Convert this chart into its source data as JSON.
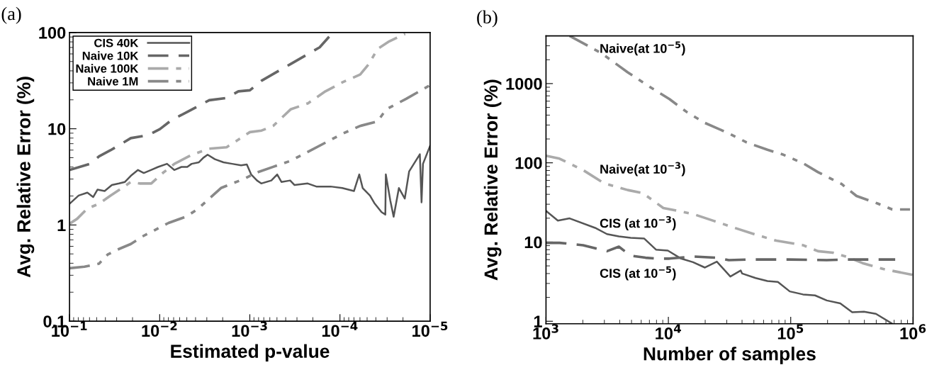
{
  "chart_data": [
    {
      "type": "line",
      "title": "(a)",
      "xlabel": "Estimated p-value",
      "ylabel": "Avg. Relative Error (%)",
      "log": "xy",
      "xlim": [
        0.1,
        1e-05
      ],
      "xticks": [
        {
          "value": 0.1,
          "label": "10$^{−1}$"
        },
        {
          "value": 0.01,
          "label": "10$^{−2}$"
        },
        {
          "value": 0.001,
          "label": "10$^{−3}$"
        },
        {
          "value": 0.0001,
          "label": "10$^{−4}$"
        },
        {
          "value": 1e-05,
          "label": "10$^{−5}$"
        }
      ],
      "ylim": [
        0.1,
        100
      ],
      "yticks": [
        0.1,
        1,
        10,
        100
      ],
      "grid": false,
      "legend": "top left",
      "series": [
        {
          "name": "CIS 40K",
          "color": "#555555",
          "line_style": "solid",
          "x": [
            0.1,
            0.0793,
            0.0634,
            0.0547,
            0.049,
            0.0408,
            0.0339,
            0.0282,
            0.0243,
            0.0209,
            0.0174,
            0.015,
            0.0125,
            0.0104,
            0.00829,
            0.00689,
            0.00573,
            0.00494,
            0.00442,
            0.00367,
            0.00328,
            0.00294,
            0.00244,
            0.00196,
            0.00157,
            0.00125,
            0.00108,
            0.000967,
            0.000833,
            0.000747,
            0.000577,
            0.000497,
            0.000446,
            0.000357,
            0.000319,
            0.000228,
            0.000183,
            0.000127,
            9.44e-05,
            7e-05,
            6.11e-05,
            5.6e-05,
            4.65e-05,
            4.16e-05,
            3.46e-05,
            3.14e-05,
            3.1e-05,
            2.77e-05,
            2.54e-05,
            2.22e-05,
            1.91e-05,
            1.71e-05,
            1.3e-05,
            1.245e-05,
            1.2e-05,
            1e-05
          ],
          "values": [
            1.66,
            2.02,
            2.17,
            1.95,
            2.33,
            2.25,
            2.6,
            2.7,
            2.8,
            3.24,
            3.73,
            3.47,
            3.73,
            4.01,
            4.32,
            3.73,
            4.01,
            4.01,
            4.32,
            4.48,
            4.99,
            5.37,
            4.82,
            4.48,
            4.32,
            4.16,
            4.26,
            3.35,
            2.9,
            2.7,
            2.9,
            3.35,
            2.8,
            2.9,
            2.6,
            2.7,
            2.51,
            2.51,
            2.42,
            2.25,
            3.35,
            2.42,
            2.02,
            1.69,
            1.36,
            1.28,
            3.35,
            1.81,
            1.22,
            2.42,
            1.88,
            3.6,
            5.43,
            1.72,
            4.32,
            6.67
          ]
        },
        {
          "name": "Naive 10K",
          "color": "#666666",
          "line_style": "dashed",
          "x": [
            0.1,
            0.0589,
            0.0471,
            0.0351,
            0.0209,
            0.0134,
            0.00994,
            0.00739,
            0.00473,
            0.00327,
            0.00282,
            0.00181,
            0.00134,
            0.000998,
            0.000741,
            0.000353,
            0.000168,
            0.00012
          ],
          "values": [
            3.73,
            4.32,
            5.17,
            5.98,
            7.99,
            8.59,
            9.93,
            12.3,
            15.3,
            18.4,
            19.8,
            20.9,
            24.5,
            25.1,
            31.6,
            47.1,
            70.2,
            100
          ]
        },
        {
          "name": "Naive 100K",
          "color": "#aaaaaa",
          "line_style": "dashdot",
          "x": [
            0.1,
            0.0822,
            0.0634,
            0.0471,
            0.0351,
            0.0261,
            0.0209,
            0.0167,
            0.0124,
            0.00923,
            0.00686,
            0.0044,
            0.00282,
            0.00181,
            0.00134,
            0.000998,
            0.000741,
            0.000551,
            0.000353,
            0.000226,
            0.000145,
            9.31e-05,
            5.97e-05,
            4.78e-05,
            3.83e-05,
            2.84e-05,
            1.89e-05
          ],
          "values": [
            1.03,
            1.16,
            1.48,
            1.66,
            2.02,
            2.42,
            2.8,
            2.7,
            2.7,
            3.47,
            4.32,
            5.37,
            6.2,
            6.43,
            7.7,
            9.23,
            9.58,
            10.7,
            15.9,
            18.4,
            24.5,
            30.5,
            36.6,
            47.1,
            67.6,
            81.1,
            97.1
          ]
        },
        {
          "name": "Naive 1M",
          "color": "#888888",
          "line_style": "dashdotdot",
          "x": [
            0.1,
            0.0683,
            0.0471,
            0.0378,
            0.0302,
            0.0209,
            0.0155,
            0.0115,
            0.00796,
            0.0051,
            0.00379,
            0.00282,
            0.00209,
            0.00156,
            0.00116,
            0.000861,
            0.000551,
            0.000353,
            0.000226,
            0.000145,
            9.31e-05,
            5.97e-05,
            3.83e-05,
            3.08e-05,
            1.84e-05,
            1e-05
          ],
          "values": [
            0.355,
            0.368,
            0.396,
            0.492,
            0.548,
            0.634,
            0.76,
            0.878,
            1.05,
            1.22,
            1.46,
            1.88,
            2.42,
            2.7,
            3.01,
            3.47,
            4.02,
            4.64,
            5.77,
            7.17,
            8.91,
            10.7,
            11.9,
            15.9,
            20.5,
            28.4
          ]
        }
      ]
    },
    {
      "type": "line",
      "title": "(b)",
      "xlabel": "Number of samples",
      "ylabel": "Avg. Relative Error (%)",
      "log": "xy",
      "xlim": [
        1000,
        1000000
      ],
      "xticks": [
        {
          "value": 1000,
          "label": "10$^{3}$"
        },
        {
          "value": 10000,
          "label": "10$^{4}$"
        },
        {
          "value": 100000,
          "label": "10$^{5}$"
        },
        {
          "value": 1000000,
          "label": "10$^{6}$"
        }
      ],
      "ylim": [
        0.93,
        4000
      ],
      "yticks": [
        1,
        10,
        100,
        1000
      ],
      "grid": false,
      "legend": false,
      "annotations": [
        "Naive(at 10$^{−5}$)",
        "Naive(at 10$^{−3}$)",
        "CIS (at 10$^{−3}$)",
        "CIS (at 10$^{−5}$)"
      ],
      "series": [
        {
          "color": "#888888",
          "line_style": "dashdotdot",
          "x": [
            1560,
            2810,
            4650,
            6510,
            10200,
            14300,
            19900,
            31200,
            43600,
            64500,
            85300,
            126000,
            167000,
            209000,
            261000,
            345000,
            511000,
            676000,
            944000
          ],
          "values": [
            4000,
            2440,
            1390,
            983,
            637,
            432,
            319,
            235,
            181,
            146,
            128,
            98.8,
            76.2,
            64.1,
            53.9,
            38.1,
            30.7,
            25.8,
            25.8
          ]
        },
        {
          "color": "#aaaaaa",
          "line_style": "dashdot",
          "x": [
            1000,
            1290,
            2010,
            2980,
            4660,
            6160,
            9100,
            15900,
            23500,
            34800,
            54500,
            76300,
            126000,
            167000,
            221000,
            292000,
            386000,
            571000,
            1000000
          ],
          "values": [
            123,
            113,
            80.9,
            55.2,
            45.3,
            41.6,
            26.9,
            22.6,
            18.5,
            15.1,
            12.1,
            10.4,
            9.12,
            7.66,
            7.34,
            6.45,
            5.42,
            4.56,
            3.84
          ]
        },
        {
          "color": "#555555",
          "line_style": "solid",
          "x": [
            1000,
            1250,
            1560,
            2520,
            3150,
            3940,
            4920,
            6330,
            7920,
            9900,
            12700,
            15900,
            19900,
            24900,
            32100,
            39000,
            40100,
            51600,
            64500,
            78500,
            98200,
            126000,
            158000,
            197000,
            254000,
            318000,
            397000,
            497000,
            676000
          ],
          "values": [
            24.7,
            18.6,
            19.9,
            15.1,
            12.6,
            11.8,
            11.3,
            11.1,
            8.02,
            7.81,
            6.18,
            5.57,
            4.76,
            5.66,
            3.67,
            4.37,
            4.0,
            3.51,
            3.22,
            3.14,
            2.38,
            2.18,
            2.12,
            1.83,
            1.68,
            1.3,
            1.32,
            1.24,
            0.93
          ]
        },
        {
          "color": "#666666",
          "line_style": "dashed",
          "x": [
            1000,
            1290,
            2010,
            3150,
            3940,
            4920,
            6510,
            8140,
            10200,
            15900,
            24900,
            31200,
            43600,
            95500,
            197000,
            292000,
            714000
          ],
          "values": [
            9.77,
            9.77,
            9.12,
            7.67,
            8.73,
            6.73,
            6.34,
            6.18,
            6.18,
            6.57,
            6.34,
            5.91,
            6.01,
            6.01,
            5.91,
            6.01,
            6.01
          ]
        }
      ]
    }
  ]
}
